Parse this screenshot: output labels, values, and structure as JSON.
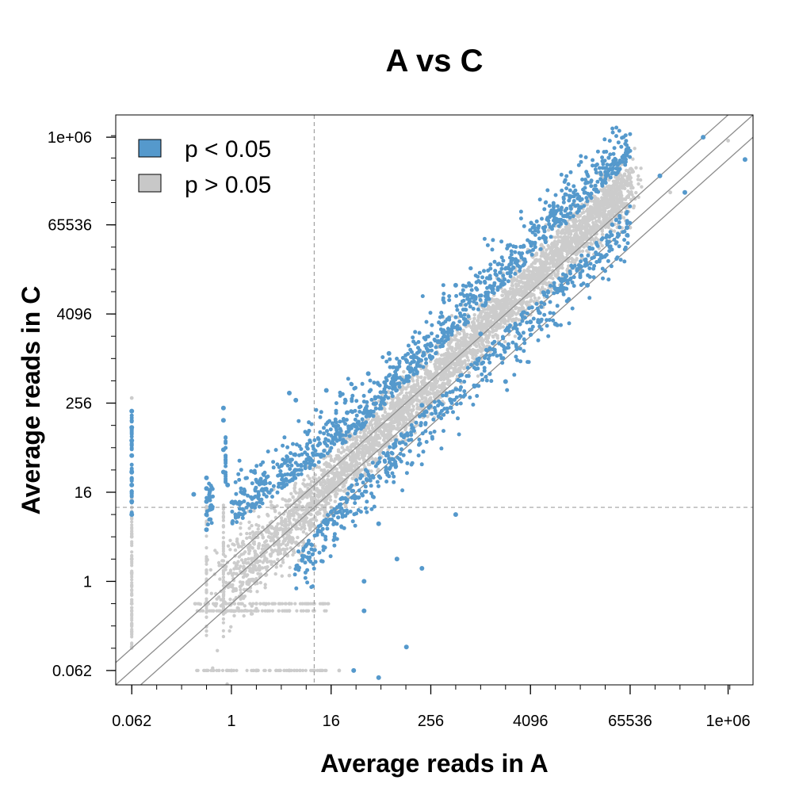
{
  "chart_data": {
    "type": "scatter",
    "title": "A vs C",
    "xlabel": "Average reads in A",
    "ylabel": "Average reads in C",
    "scale": "log2",
    "xlim": [
      0.04,
      2000000
    ],
    "ylim": [
      0.04,
      2000000
    ],
    "x_ticks": [
      {
        "value": 0.0625,
        "label": "0.062"
      },
      {
        "value": 1,
        "label": "1"
      },
      {
        "value": 16,
        "label": "16"
      },
      {
        "value": 256,
        "label": "256"
      },
      {
        "value": 4096,
        "label": "4096"
      },
      {
        "value": 65536,
        "label": "65536"
      },
      {
        "value": 1000000,
        "label": "1e+06"
      }
    ],
    "y_ticks": [
      {
        "value": 0.0625,
        "label": "0.062"
      },
      {
        "value": 1,
        "label": "1"
      },
      {
        "value": 16,
        "label": "16"
      },
      {
        "value": 256,
        "label": "256"
      },
      {
        "value": 4096,
        "label": "4096"
      },
      {
        "value": 65536,
        "label": "65536"
      },
      {
        "value": 1000000,
        "label": "1e+06"
      }
    ],
    "reference_lines": {
      "diagonals": [
        {
          "fold": 1
        },
        {
          "fold": 2
        },
        {
          "fold": 0.5
        }
      ],
      "threshold_x": 10,
      "threshold_y": 10
    },
    "legend": {
      "position": "top-left",
      "entries": [
        {
          "label": "p < 0.05",
          "color": "#5599cc"
        },
        {
          "label": "p > 0.05",
          "color": "#c8c8c8"
        }
      ]
    },
    "colors": {
      "significant": "#5599cc",
      "not_significant": "#cccccc",
      "reference_line": "#8c8c8c",
      "threshold_line": "#a0a0a0"
    },
    "series": [
      {
        "name": "p < 0.05",
        "points": [
          [
            0.0625,
            200
          ],
          [
            0.0625,
            120
          ],
          [
            0.0625,
            80
          ],
          [
            0.0625,
            50
          ],
          [
            0.0625,
            30
          ],
          [
            0.0625,
            20
          ],
          [
            0.0625,
            12
          ],
          [
            0.0625,
            8
          ],
          [
            0.5,
            25
          ],
          [
            0.5,
            18
          ],
          [
            0.5,
            12
          ],
          [
            0.5,
            8
          ],
          [
            0.5,
            5
          ],
          [
            0.35,
            15
          ],
          [
            0.8,
            220
          ],
          [
            0.8,
            150
          ],
          [
            0.8,
            60
          ],
          [
            0.8,
            30
          ],
          [
            0.9,
            20
          ],
          [
            5,
            350
          ],
          [
            6,
            280
          ],
          [
            14,
            380
          ],
          [
            25,
            190
          ],
          [
            30,
            130
          ],
          [
            20,
            100
          ],
          [
            45,
            640
          ],
          [
            80,
            1200
          ],
          [
            100,
            750
          ],
          [
            200,
            240
          ],
          [
            512,
            10000
          ],
          [
            1024,
            2200
          ],
          [
            4096,
            3200
          ],
          [
            8192,
            9000
          ],
          [
            16384,
            18000
          ],
          [
            30000,
            24000
          ],
          [
            60000,
            60000
          ],
          [
            150000,
            300000
          ],
          [
            300000,
            180000
          ],
          [
            500000,
            1000000
          ],
          [
            1600000,
            500000
          ],
          [
            60,
            6
          ],
          [
            40,
            1
          ],
          [
            40,
            0.4
          ],
          [
            100,
            2
          ],
          [
            200,
            1.5
          ],
          [
            512,
            8
          ],
          [
            2048,
            500
          ],
          [
            8192,
            3000
          ],
          [
            20000,
            10000
          ],
          [
            60,
            0.05
          ],
          [
            30,
            0.0625
          ],
          [
            130,
            0.13
          ]
        ]
      },
      {
        "name": "p > 0.05",
        "points": [
          [
            0.0625,
            1.3
          ],
          [
            0.0625,
            0.5
          ],
          [
            0.0625,
            0.13
          ],
          [
            0.0625,
            2
          ],
          [
            0.0625,
            4
          ],
          [
            1,
            0.0625
          ],
          [
            2,
            0.0625
          ],
          [
            5,
            0.0625
          ],
          [
            10,
            0.0625
          ],
          [
            20,
            0.0625
          ],
          [
            1,
            0.4
          ],
          [
            2,
            0.4
          ],
          [
            5,
            0.4
          ],
          [
            10,
            0.4
          ],
          [
            1,
            0.5
          ],
          [
            2,
            0.5
          ],
          [
            5,
            0.5
          ],
          [
            10,
            0.5
          ],
          [
            2,
            1
          ],
          [
            5,
            1.2
          ],
          [
            8,
            3
          ],
          [
            16,
            10
          ],
          [
            32,
            28
          ],
          [
            64,
            60
          ],
          [
            128,
            120
          ],
          [
            256,
            250
          ],
          [
            1024,
            1000
          ],
          [
            4096,
            4000
          ],
          [
            16384,
            16000
          ],
          [
            65536,
            60000
          ],
          [
            200000,
            180000
          ],
          [
            1000000,
            900000
          ],
          [
            0.0625,
            300
          ]
        ]
      }
    ]
  }
}
